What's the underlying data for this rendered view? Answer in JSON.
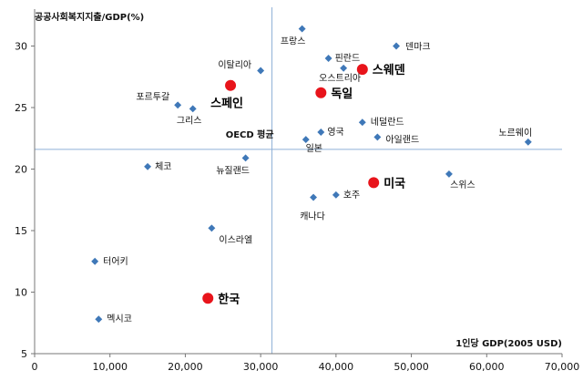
{
  "chart_data": {
    "type": "scatter",
    "ylabel": "공공사회복지지출/GDP(%)",
    "xlabel": "1인당 GDP(2005 USD)",
    "xlim": [
      0,
      70000
    ],
    "ylim": [
      5,
      33
    ],
    "x_ticks": [
      "0",
      "10,000",
      "20,000",
      "30,000",
      "40,000",
      "50,000",
      "60,000",
      "70,000"
    ],
    "y_ticks": [
      "5",
      "10",
      "15",
      "20",
      "25",
      "30"
    ],
    "grid": false,
    "reference_lines": {
      "x": 31500,
      "y": 21.6
    },
    "reference_label": "OECD 평균",
    "colors": {
      "point": "#3F78B8",
      "highlight": "#E8141B",
      "reference": "#8FB0D6"
    },
    "points": [
      {
        "name": "프랑스",
        "x": 35500,
        "y": 31.4,
        "highlight": false
      },
      {
        "name": "덴마크",
        "x": 48000,
        "y": 30.0,
        "highlight": false
      },
      {
        "name": "핀란드",
        "x": 39000,
        "y": 29.0,
        "highlight": false
      },
      {
        "name": "오스트리아",
        "x": 41000,
        "y": 28.2,
        "highlight": false
      },
      {
        "name": "이탈리아",
        "x": 30000,
        "y": 28.0,
        "highlight": false
      },
      {
        "name": "스웨덴",
        "x": 43500,
        "y": 28.1,
        "highlight": true
      },
      {
        "name": "스페인",
        "x": 26000,
        "y": 26.8,
        "highlight": true
      },
      {
        "name": "독일",
        "x": 38000,
        "y": 26.2,
        "highlight": true
      },
      {
        "name": "포르투갈",
        "x": 19000,
        "y": 25.2,
        "highlight": false
      },
      {
        "name": "그리스",
        "x": 21000,
        "y": 24.9,
        "highlight": false
      },
      {
        "name": "네덜란드",
        "x": 43500,
        "y": 23.8,
        "highlight": false
      },
      {
        "name": "영국",
        "x": 38000,
        "y": 23.0,
        "highlight": false
      },
      {
        "name": "일본",
        "x": 36000,
        "y": 22.4,
        "highlight": false
      },
      {
        "name": "아일랜드",
        "x": 45500,
        "y": 22.6,
        "highlight": false
      },
      {
        "name": "노르웨이",
        "x": 65500,
        "y": 22.2,
        "highlight": false
      },
      {
        "name": "뉴질랜드",
        "x": 28000,
        "y": 20.9,
        "highlight": false
      },
      {
        "name": "체코",
        "x": 15000,
        "y": 20.2,
        "highlight": false
      },
      {
        "name": "스위스",
        "x": 55000,
        "y": 19.6,
        "highlight": false
      },
      {
        "name": "미국",
        "x": 45000,
        "y": 18.9,
        "highlight": true
      },
      {
        "name": "호주",
        "x": 40000,
        "y": 17.9,
        "highlight": false
      },
      {
        "name": "캐나다",
        "x": 37000,
        "y": 17.7,
        "highlight": false
      },
      {
        "name": "이스라엘",
        "x": 23500,
        "y": 15.2,
        "highlight": false
      },
      {
        "name": "터어키",
        "x": 8000,
        "y": 12.5,
        "highlight": false
      },
      {
        "name": "한국",
        "x": 23000,
        "y": 9.5,
        "highlight": true
      },
      {
        "name": "멕시코",
        "x": 8500,
        "y": 7.8,
        "highlight": false
      }
    ]
  }
}
